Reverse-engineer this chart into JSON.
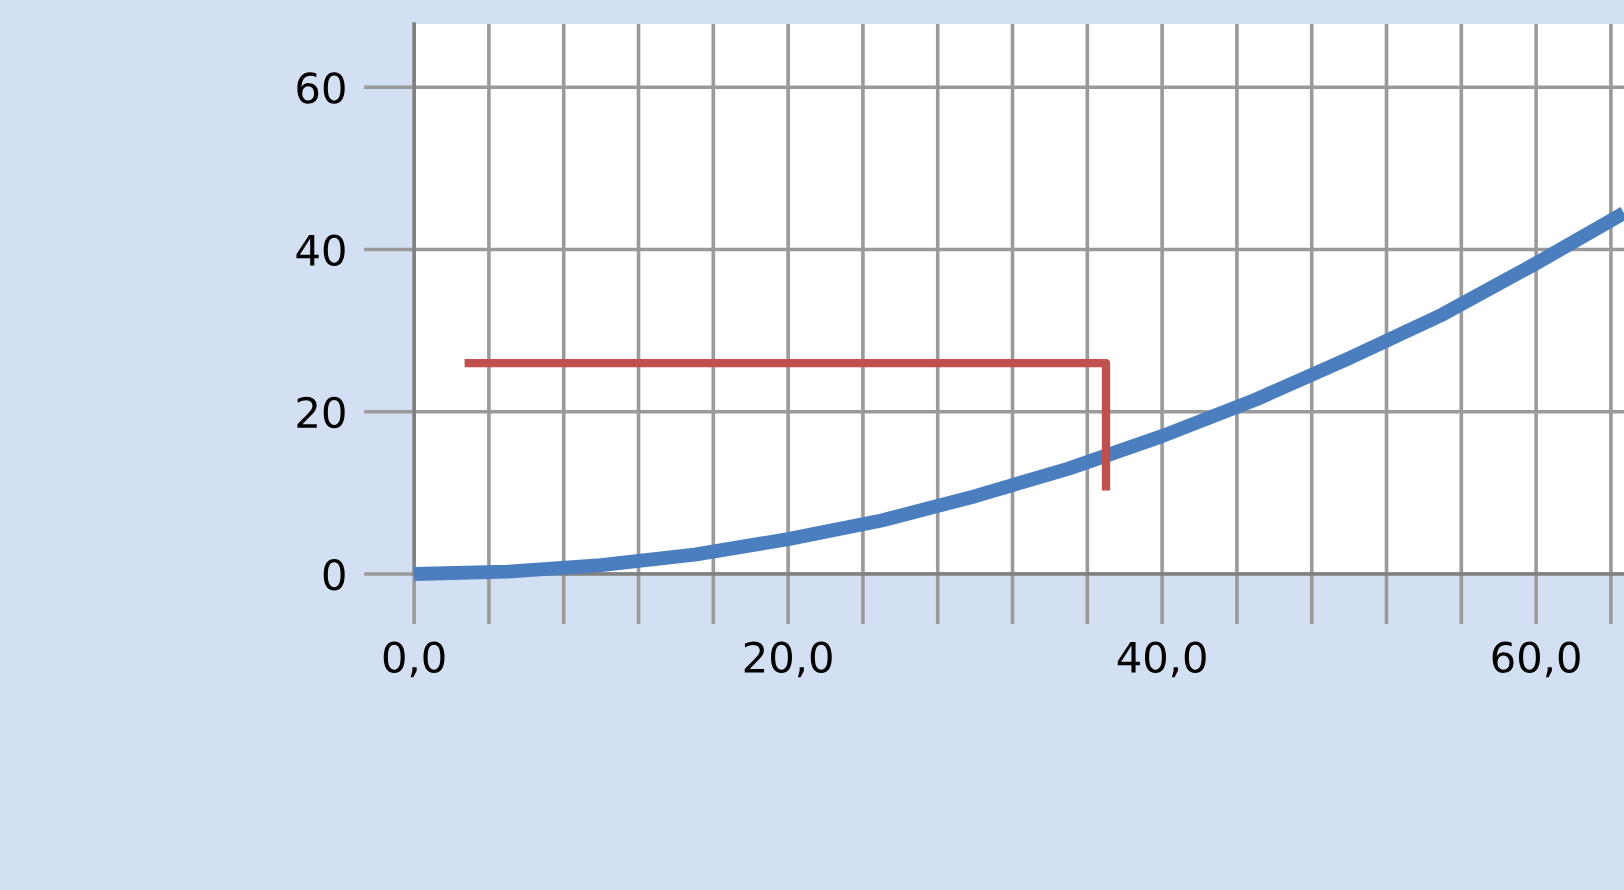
{
  "chart_data": {
    "type": "line",
    "xlim": [
      0,
      64.7
    ],
    "ylim": [
      0,
      67.8
    ],
    "xticks": [
      {
        "value": 0,
        "label": "0,0"
      },
      {
        "value": 4,
        "label": null
      },
      {
        "value": 8,
        "label": null
      },
      {
        "value": 12,
        "label": null
      },
      {
        "value": 16,
        "label": null
      },
      {
        "value": 20,
        "label": "20,0"
      },
      {
        "value": 24,
        "label": null
      },
      {
        "value": 28,
        "label": null
      },
      {
        "value": 32,
        "label": null
      },
      {
        "value": 36,
        "label": null
      },
      {
        "value": 40,
        "label": "40,0"
      },
      {
        "value": 44,
        "label": null
      },
      {
        "value": 48,
        "label": null
      },
      {
        "value": 52,
        "label": null
      },
      {
        "value": 56,
        "label": null
      },
      {
        "value": 60,
        "label": "60,0"
      },
      {
        "value": 64,
        "label": null
      }
    ],
    "yticks": [
      0,
      20,
      40,
      60
    ],
    "grid": true,
    "legend": false,
    "series": [
      {
        "color": "#4a7ebf",
        "x": [
          0,
          5,
          10,
          15,
          20,
          25,
          30,
          35,
          40,
          45,
          50,
          55,
          60,
          64.7
        ],
        "values": [
          0,
          0.3,
          1.1,
          2.4,
          4.3,
          6.6,
          9.6,
          13,
          17,
          21.5,
          26.6,
          32,
          38.3,
          44.5
        ]
      },
      {
        "color": "#c0504d",
        "x": [
          2.7,
          37,
          37
        ],
        "values": [
          26,
          26,
          10.3
        ]
      }
    ]
  }
}
